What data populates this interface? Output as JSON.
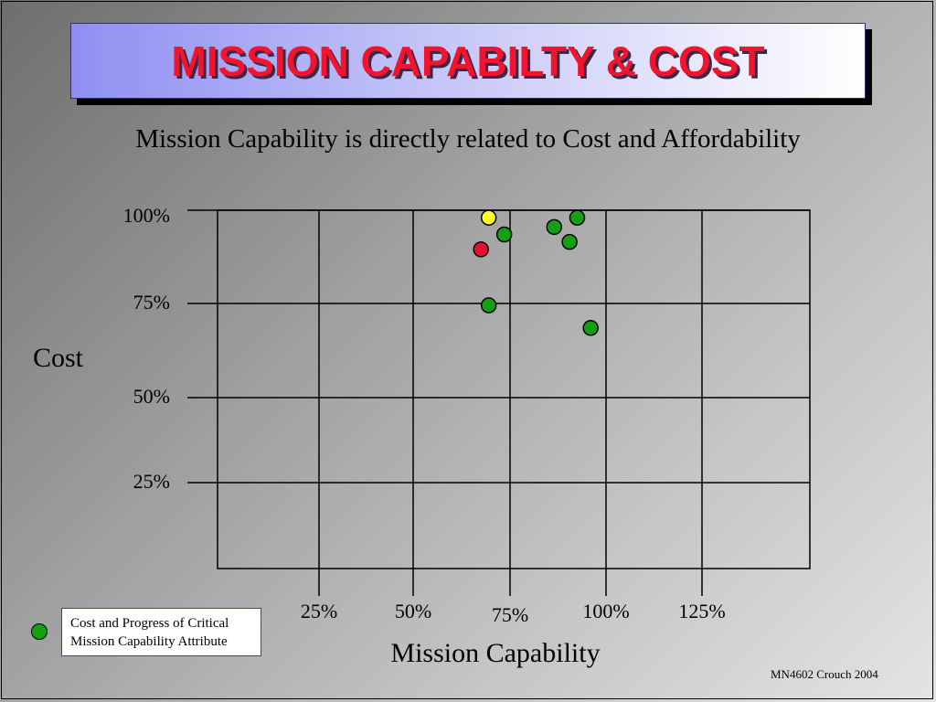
{
  "title": "MISSION CAPABILTY & COST",
  "subtitle": "Mission Capability is directly related to Cost and Affordability",
  "footer": "MN4602 Crouch 2004",
  "legend": {
    "line1": "Cost and Progress of Critical",
    "line2": "Mission Capability Attribute",
    "marker_color": "#14a014"
  },
  "colors": {
    "title_text": "#f2142c",
    "green": "#14a014",
    "red": "#e8102c",
    "yellow": "#ffff2a"
  },
  "chart_data": {
    "type": "scatter",
    "xlabel": "Mission Capability",
    "ylabel": "Cost",
    "x_ticks": [
      {
        "value": 25,
        "label": "25%"
      },
      {
        "value": 50,
        "label": "50%"
      },
      {
        "value": 75,
        "label": "75%"
      },
      {
        "value": 100,
        "label": "100%"
      },
      {
        "value": 125,
        "label": "125%"
      }
    ],
    "y_ticks": [
      {
        "value": 25,
        "label": "25%"
      },
      {
        "value": 50,
        "label": "50%"
      },
      {
        "value": 75,
        "label": "75%"
      },
      {
        "value": 100,
        "label": "100%"
      }
    ],
    "xlim": [
      0,
      150
    ],
    "ylim": [
      0,
      100
    ],
    "grid": true,
    "points": [
      {
        "x": 69.5,
        "y": 98,
        "color": "yellow"
      },
      {
        "x": 67.5,
        "y": 89.5,
        "color": "red"
      },
      {
        "x": 73.5,
        "y": 93.5,
        "color": "green"
      },
      {
        "x": 86.5,
        "y": 95.5,
        "color": "green"
      },
      {
        "x": 92.5,
        "y": 98,
        "color": "green"
      },
      {
        "x": 90.5,
        "y": 91.5,
        "color": "green"
      },
      {
        "x": 69.5,
        "y": 74.5,
        "color": "green"
      },
      {
        "x": 96,
        "y": 68.5,
        "color": "green"
      }
    ]
  }
}
